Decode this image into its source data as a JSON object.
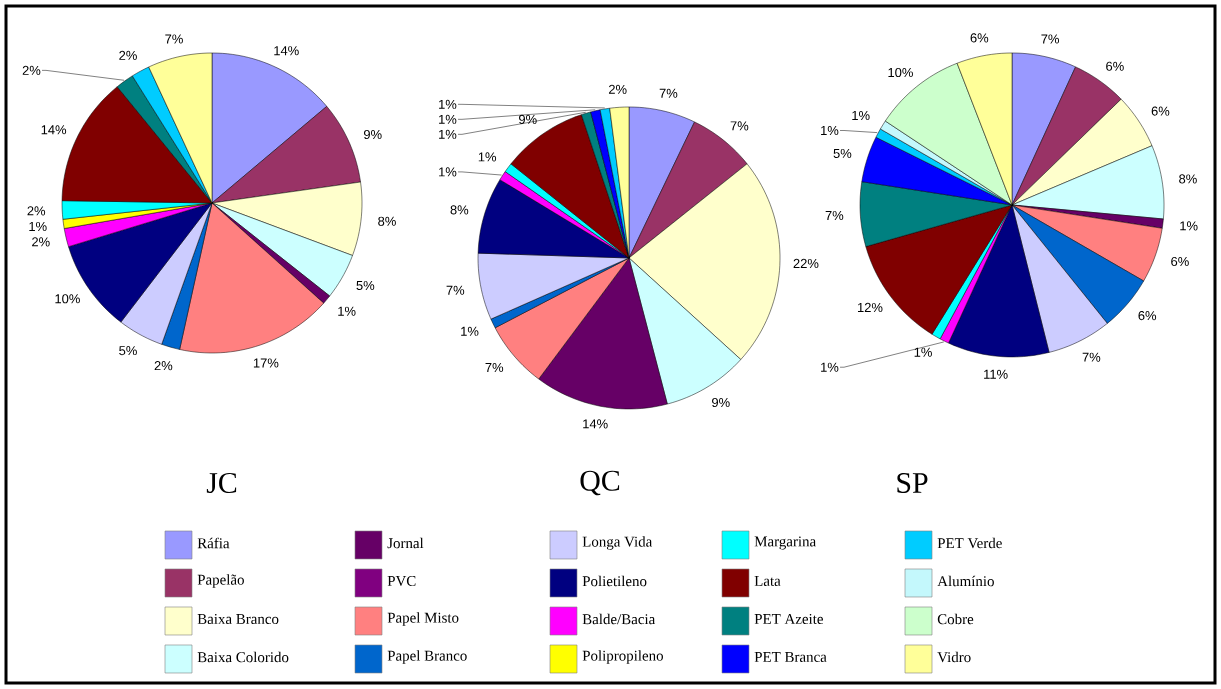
{
  "chart_data": [
    {
      "type": "pie",
      "title": "JC",
      "legend": "bottom",
      "categories": [
        "Ráfia",
        "Papelão",
        "Baixa Branco",
        "Baixa Colorido",
        "Jornal",
        "PVC",
        "Papel Misto",
        "Papel Branco",
        "Longa Vida",
        "Polietileno",
        "Balde/Bacia",
        "Polipropileno",
        "Margarina",
        "Lata",
        "PET Azeite",
        "PET Branca",
        "PET Verde",
        "Alumínio",
        "Cobre",
        "Vidro"
      ],
      "colors": [
        "#9999ff",
        "#993366",
        "#ffffcc",
        "#ccffff",
        "#660066",
        "#800080",
        "#ff8080",
        "#0066cc",
        "#ccccff",
        "#000080",
        "#ff00ff",
        "#ffff00",
        "#00ffff",
        "#800000",
        "#008080",
        "#0000ff",
        "#00ccff",
        "#c4f8fc",
        "#ccffcc",
        "#ffff99"
      ],
      "values": [
        14,
        9,
        8,
        5,
        1,
        null,
        17,
        2,
        5,
        10,
        2,
        1,
        2,
        14,
        2,
        null,
        2,
        null,
        null,
        7
      ],
      "value_labels": [
        "14%",
        "9%",
        "8%",
        "5%",
        "1%",
        null,
        "17%",
        "2%",
        "5%",
        "10%",
        "2%",
        "1%",
        "2%",
        "14%",
        "2%",
        null,
        "2%",
        null,
        null,
        "7%"
      ]
    },
    {
      "type": "pie",
      "title": "QC",
      "categories": [
        null,
        null,
        null,
        null,
        null,
        null,
        null,
        null,
        null,
        null,
        null,
        null,
        null,
        null,
        null,
        null,
        null,
        null,
        null,
        null
      ],
      "colors": [
        "#9999ff",
        "#993366",
        "#ffffcc",
        "#ccffff",
        "#660066",
        "#800080",
        "#ff8080",
        "#0066cc",
        "#ccccff",
        "#000080",
        "#ff00ff",
        "#ffff00",
        "#00ffff",
        "#800000",
        "#008080",
        "#0000ff",
        "#00ccff",
        "#c4f8fc",
        "#ccffcc",
        "#ffff99"
      ],
      "values": [
        7,
        7,
        22,
        9,
        14,
        null,
        7,
        1,
        7,
        8,
        1,
        null,
        1,
        9,
        1,
        1,
        1,
        null,
        null,
        2
      ],
      "value_labels": [
        "7%",
        "7%",
        "22%",
        "9%",
        "14%",
        null,
        "7%",
        "1%",
        "7%",
        "8%",
        "1%",
        null,
        "1%",
        "9%",
        "1%",
        "1%",
        "1%",
        null,
        null,
        "2%"
      ]
    },
    {
      "type": "pie",
      "title": "SP",
      "categories": [
        null,
        null,
        null,
        null,
        null,
        null,
        null,
        null,
        null,
        null,
        null,
        null,
        null,
        null,
        null,
        null,
        null,
        null,
        null,
        null
      ],
      "colors": [
        "#9999ff",
        "#993366",
        "#ffffcc",
        "#ccffff",
        "#660066",
        "#800080",
        "#ff8080",
        "#0066cc",
        "#ccccff",
        "#000080",
        "#ff00ff",
        "#ffff00",
        "#00ffff",
        "#800000",
        "#008080",
        "#0000ff",
        "#00ccff",
        "#c4f8fc",
        "#ccffcc",
        "#ffff99"
      ],
      "values": [
        7,
        6,
        6,
        8,
        1,
        null,
        6,
        6,
        7,
        11,
        1,
        null,
        1,
        12,
        7,
        5,
        1,
        1,
        10,
        6
      ],
      "value_labels": [
        "7%",
        "6%",
        "6%",
        "8%",
        "1%",
        null,
        "6%",
        "6%",
        "7%",
        "11%",
        "1%",
        null,
        "1%",
        "12%",
        "7%",
        "5%",
        "1%",
        "1%",
        "10%",
        "6%"
      ]
    }
  ]
}
